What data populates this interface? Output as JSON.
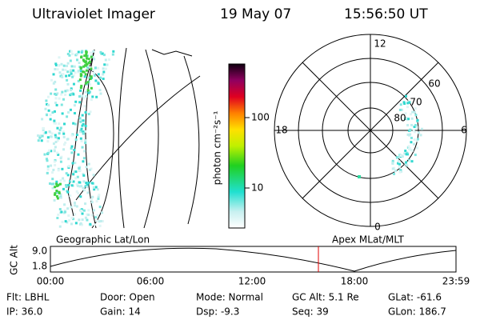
{
  "header": {
    "instrument": "Ultraviolet Imager",
    "date": "19 May 07",
    "time": "15:56:50 UT"
  },
  "colorbar": {
    "label": "photon cm⁻²s⁻¹",
    "ticks": [
      "100",
      "10"
    ]
  },
  "polar_plot": {
    "mlt_labels": [
      "12",
      "18",
      "6",
      "0"
    ],
    "mlat_labels": [
      "60",
      "70",
      "80"
    ]
  },
  "orbit_panel": {
    "left_label": "Geographic Lat/Lon",
    "right_label": "Apex MLat/MLT",
    "y_label": "GC Alt",
    "y_ticks": [
      "9.0",
      "1.8"
    ],
    "x_ticks": [
      "00:00",
      "06:00",
      "12:00",
      "18:00",
      "23:59"
    ]
  },
  "status": {
    "rows": [
      [
        "Flt: LBHL",
        "Door: Open",
        "Mode: Normal",
        "GC Alt: 5.1 Re",
        "GLat: -61.6"
      ],
      [
        "IP: 36.0",
        "Gain: 14",
        "Dsp: -9.3",
        "Seq: 39",
        "GLon: 186.7"
      ]
    ]
  }
}
